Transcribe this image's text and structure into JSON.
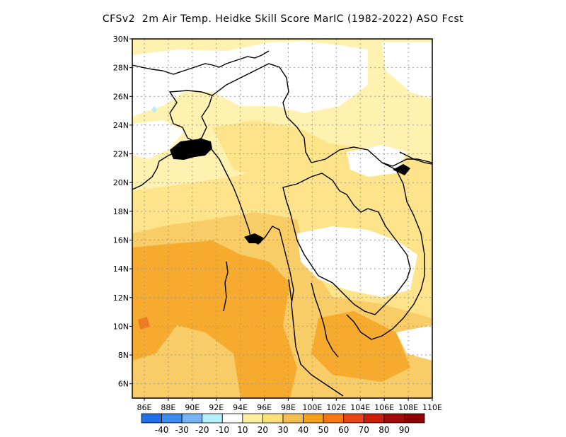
{
  "title": "CFSv2  2m Air Temp. Heidke Skill Score MarIC (1982-2022) ASO Fcst",
  "map": {
    "lat_labels": [
      "6N",
      "8N",
      "10N",
      "12N",
      "14N",
      "16N",
      "18N",
      "20N",
      "22N",
      "24N",
      "26N",
      "28N",
      "30N"
    ],
    "lon_labels": [
      "86E",
      "88E",
      "90E",
      "92E",
      "94E",
      "96E",
      "98E",
      "100E",
      "102E",
      "104E",
      "106E",
      "108E",
      "110E"
    ],
    "grid": true,
    "coastline_color": "#000000"
  },
  "colorbar": {
    "labels": [
      "-40",
      "-30",
      "-20",
      "-10",
      "10",
      "20",
      "30",
      "40",
      "50",
      "60",
      "70",
      "80",
      "90"
    ],
    "colors": [
      "#1f6fe6",
      "#3c8cf0",
      "#78b4f5",
      "#b4f0fa",
      "#ffffff",
      "#fff0a0",
      "#fae178",
      "#f5be50",
      "#f5a01e",
      "#f57814",
      "#e64614",
      "#c81e0a",
      "#a00a0a",
      "#8c0000"
    ]
  },
  "regions": [
    {
      "name": "white-north",
      "color": "#ffffff"
    },
    {
      "name": "pale",
      "color": "#fff2b0"
    },
    {
      "name": "light",
      "color": "#fde48a"
    },
    {
      "name": "medium",
      "color": "#f8cc66"
    },
    {
      "name": "orange",
      "color": "#f6ab2e"
    },
    {
      "name": "hot",
      "color": "#f07a1e"
    }
  ]
}
